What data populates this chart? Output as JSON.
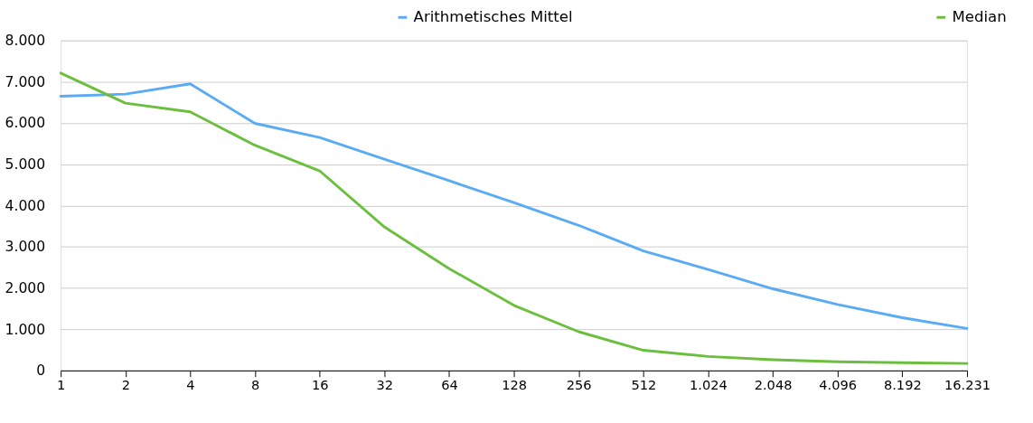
{
  "chart_data": {
    "type": "line",
    "categories": [
      "1",
      "2",
      "4",
      "8",
      "16",
      "32",
      "64",
      "128",
      "256",
      "512",
      "1.024",
      "2.048",
      "4.096",
      "8.192",
      "16.231"
    ],
    "series": [
      {
        "name": "Arithmetisches Mittel",
        "color": "#5aabf5",
        "values": [
          6650,
          6700,
          6950,
          5990,
          5650,
          5120,
          4600,
          4070,
          3520,
          2900,
          2450,
          1980,
          1600,
          1280,
          1020
        ]
      },
      {
        "name": "Median",
        "color": "#6cbf3e",
        "values": [
          7210,
          6480,
          6270,
          5460,
          4840,
          3480,
          2470,
          1580,
          940,
          490,
          340,
          260,
          210,
          190,
          170
        ]
      }
    ],
    "ylim": [
      0,
      8000
    ],
    "yticks": [
      {
        "value": 0,
        "label": "0"
      },
      {
        "value": 1000,
        "label": "1.000"
      },
      {
        "value": 2000,
        "label": "2.000"
      },
      {
        "value": 3000,
        "label": "3.000"
      },
      {
        "value": 4000,
        "label": "4.000"
      },
      {
        "value": 5000,
        "label": "5.000"
      },
      {
        "value": 6000,
        "label": "6.000"
      },
      {
        "value": 7000,
        "label": "7.000"
      },
      {
        "value": 8000,
        "label": "8.000"
      }
    ],
    "grid": "y",
    "legend": "top",
    "marker": "none",
    "line_style": "solid"
  }
}
